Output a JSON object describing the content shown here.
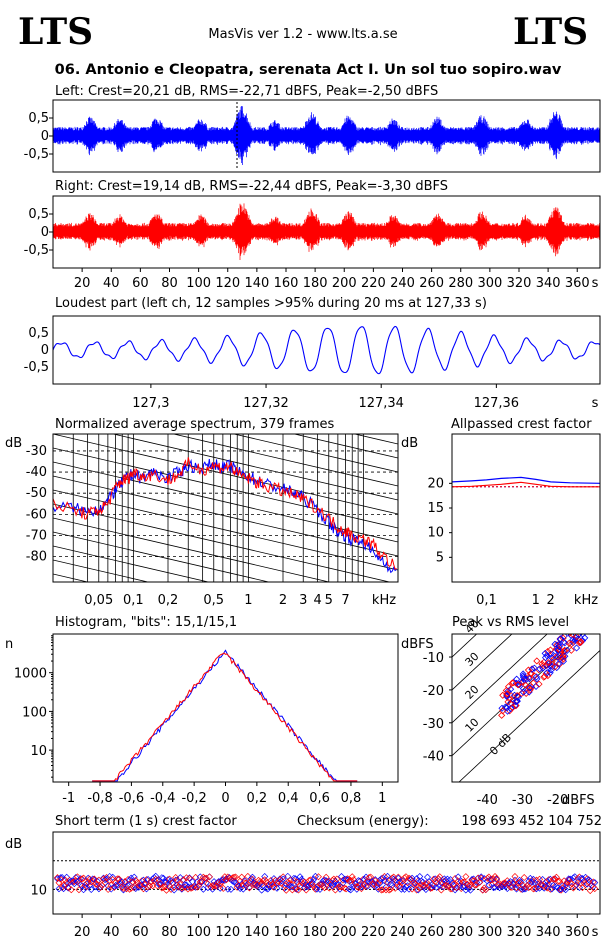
{
  "header": {
    "logo_left": "LTS",
    "logo_right": "LTS",
    "app_title": "MasVis ver 1.2 - www.lts.a.se",
    "file_title": "06. Antonio e Cleopatra, serenata Act I. Un sol tuo sopiro.wav"
  },
  "colors": {
    "left": "#0000ff",
    "right": "#ff0000",
    "frame": "#000000"
  },
  "chart_data": [
    {
      "type": "line",
      "title": "Left: Crest=20,21 dB, RMS=-22,71 dBFS, Peak=-2,50 dBFS",
      "series": [
        {
          "values": []
        }
      ],
      "yticks": [
        "0,5",
        "0",
        "-0,5"
      ],
      "ylim": [
        -1,
        1
      ],
      "xlim": [
        0,
        370
      ]
    },
    {
      "type": "line",
      "title": "Right: Crest=19,14 dB, RMS=-22,44 dBFS, Peak=-3,30 dBFS",
      "series": [
        {
          "values": []
        }
      ],
      "yticks": [
        "0,5",
        "0",
        "-0,5"
      ],
      "ylim": [
        -1,
        1
      ],
      "xlim": [
        0,
        370
      ],
      "xticks": [
        "20",
        "40",
        "60",
        "80",
        "100",
        "120",
        "140",
        "160",
        "180",
        "200",
        "220",
        "240",
        "260",
        "280",
        "300",
        "320",
        "340",
        "360",
        "s"
      ]
    },
    {
      "type": "line",
      "title": "Loudest part (left  ch, 12 samples >95% during 20 ms at 127,33 s)",
      "yticks": [
        "0,5",
        "0",
        "-0,5"
      ],
      "xticks": [
        "127,3",
        "127,32",
        "127,34",
        "127,36",
        "s"
      ],
      "xlim": [
        127.283,
        127.378
      ],
      "ylim": [
        -1,
        1
      ]
    },
    {
      "type": "line",
      "title": "Normalized average spectrum, 379 frames",
      "ylabel": "dB",
      "yticks": [
        "-30",
        "-40",
        "-50",
        "-60",
        "-70",
        "-80"
      ],
      "xticks": [
        "0,05",
        "0,1",
        "0,2",
        "0,5",
        "1",
        "2",
        "3",
        "4",
        "5",
        "7",
        "kHz"
      ],
      "series": [
        {
          "x": [
            0.02,
            0.03,
            0.04,
            0.05,
            0.06,
            0.07,
            0.08,
            0.09,
            0.1,
            0.12,
            0.15,
            0.2,
            0.25,
            0.3,
            0.4,
            0.5,
            0.6,
            0.7,
            0.8,
            1,
            1.2,
            1.5,
            2,
            2.5,
            3,
            4,
            5,
            6,
            7,
            8,
            10,
            12,
            15,
            20
          ],
          "y": [
            -56,
            -57,
            -59,
            -57,
            -54,
            -48,
            -45,
            -42,
            -41,
            -43,
            -40,
            -43,
            -40,
            -37,
            -38,
            -36,
            -38,
            -37,
            -40,
            -42,
            -44,
            -46,
            -48,
            -50,
            -52,
            -58,
            -64,
            -68,
            -70,
            -72,
            -73,
            -78,
            -82,
            -88
          ]
        },
        {
          "x": [
            0.02,
            0.03,
            0.04,
            0.05,
            0.06,
            0.07,
            0.08,
            0.09,
            0.1,
            0.12,
            0.15,
            0.2,
            0.25,
            0.3,
            0.4,
            0.5,
            0.6,
            0.7,
            0.8,
            1,
            1.2,
            1.5,
            2,
            2.5,
            3,
            4,
            5,
            6,
            7,
            8,
            10,
            12,
            15,
            20
          ],
          "y": [
            -55,
            -58,
            -60,
            -58,
            -55,
            -47,
            -44,
            -43,
            -40,
            -42,
            -41,
            -44,
            -41,
            -36,
            -39,
            -37,
            -38,
            -37,
            -41,
            -43,
            -45,
            -47,
            -49,
            -51,
            -53,
            -57,
            -62,
            -66,
            -68,
            -70,
            -72,
            -74,
            -80,
            -86
          ]
        }
      ]
    },
    {
      "type": "line",
      "title": "Allpassed crest factor",
      "ylabel": "dB",
      "yticks": [
        "20",
        "15",
        "10",
        "5"
      ],
      "xticks": [
        "0,1",
        "1",
        "2",
        "kHz"
      ],
      "ylim": [
        0,
        30
      ],
      "series": [
        {
          "x": [
            0.02,
            0.05,
            0.1,
            0.2,
            0.5,
            1,
            2,
            5,
            20
          ],
          "y": [
            20.3,
            20.5,
            20.7,
            21.0,
            21.2,
            20.8,
            20.3,
            20.1,
            20.0
          ]
        },
        {
          "x": [
            0.02,
            0.05,
            0.1,
            0.2,
            0.5,
            1,
            2,
            5,
            20
          ],
          "y": [
            19.3,
            19.4,
            19.6,
            19.8,
            20.2,
            19.8,
            19.4,
            19.3,
            19.3
          ]
        }
      ]
    },
    {
      "type": "line",
      "title": "Histogram, \"bits\": 15,1/15,1",
      "ylabel": "n",
      "yticks": [
        "1000",
        "100",
        "10"
      ],
      "xticks": [
        "-1",
        "-0,8",
        "-0,6",
        "-0,4",
        "-0,2",
        "0",
        "0,2",
        "0,4",
        "0,6",
        "0,8",
        "1"
      ],
      "xlim": [
        -1.1,
        1.1
      ]
    },
    {
      "type": "scatter",
      "title": "Peak vs RMS level",
      "ylabel": "dBFS",
      "xlabel": "dBFS",
      "yticks": [
        "-10",
        "-20",
        "-30",
        "-40"
      ],
      "xticks": [
        "-40",
        "-30",
        "-20"
      ],
      "diagonal_labels": [
        "40",
        "30",
        "20",
        "10",
        "0 dB"
      ],
      "xlim": [
        -50,
        -8
      ],
      "ylim": [
        -48,
        -3
      ]
    },
    {
      "type": "scatter",
      "title": "Short term (1 s) crest factor",
      "ylabel": "dB",
      "yticks": [
        "10"
      ],
      "xticks": [
        "20",
        "40",
        "60",
        "80",
        "100",
        "120",
        "140",
        "160",
        "180",
        "200",
        "220",
        "240",
        "260",
        "280",
        "300",
        "320",
        "340",
        "360",
        "s"
      ],
      "xlim": [
        0,
        370
      ],
      "checksum_label": "Checksum (energy):",
      "checksum_value": "198 693 452 104 752"
    }
  ]
}
